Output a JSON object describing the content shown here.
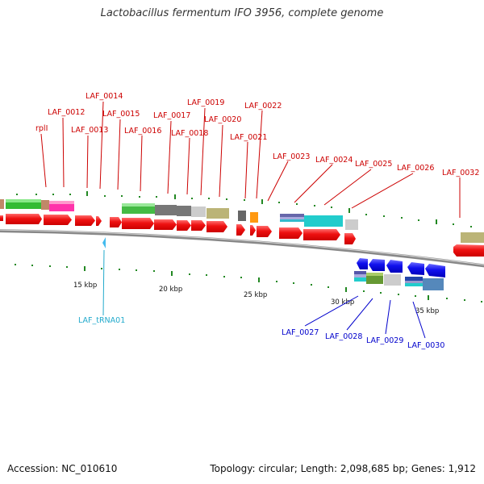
{
  "title": "Lactobacillus fermentum IFO 3956, complete genome",
  "accession": "Accession: NC_010610",
  "topology": "Topology: circular; Length: 2,098,685 bp; Genes: 1,912",
  "colors": {
    "forward_label": "#cc0000",
    "reverse_label": "#0000cc",
    "trna_label": "#22aacc",
    "backbone": "#888888",
    "tick": "#228822"
  },
  "forward_labels": [
    "rplI",
    "LAF_0012",
    "LAF_0013",
    "LAF_0014",
    "LAF_0015",
    "LAF_0016",
    "LAF_0017",
    "LAF_0018",
    "LAF_0019",
    "LAF_0020",
    "LAF_0021",
    "LAF_0022",
    "LAF_0023",
    "LAF_0024",
    "LAF_0025",
    "LAF_0026",
    "LAF_0032"
  ],
  "reverse_labels": [
    "LAF_0027",
    "LAF_0028",
    "LAF_0029",
    "LAF_0030"
  ],
  "trna_label": "LAF_tRNA01",
  "scale_labels": [
    "15 kbp",
    "20 kbp",
    "25 kbp",
    "30 kbp",
    "35 kbp"
  ]
}
